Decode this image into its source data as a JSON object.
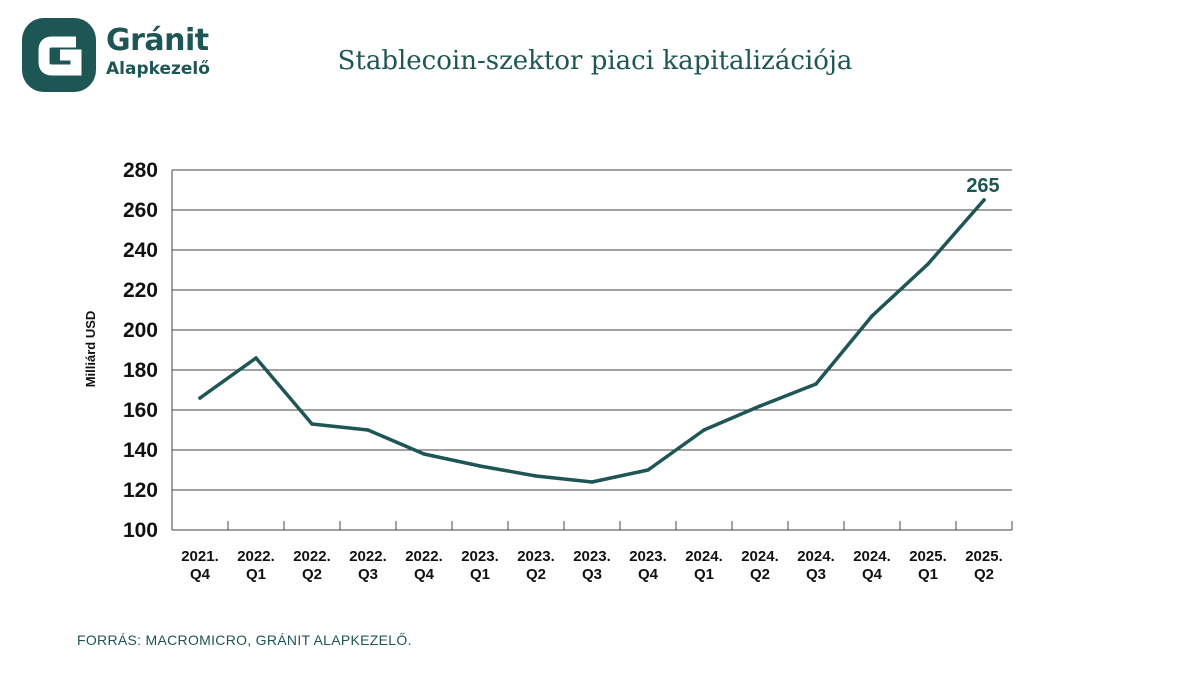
{
  "brand": {
    "name": "Gránit",
    "subtitle": "Alapkezelő",
    "logo_icon": "granit-g-logo-icon",
    "color": "#1d5655"
  },
  "source_text": "FORRÁS: MACROMICRO, GRÁNIT ALAPKEZELŐ.",
  "chart_data": {
    "type": "line",
    "title": "Stablecoin-szektor piaci kapitalizációja",
    "ylabel": "Milliárd USD",
    "xlabel": "",
    "ylim": [
      100,
      280
    ],
    "yticks": [
      100,
      120,
      140,
      160,
      180,
      200,
      220,
      240,
      260,
      280
    ],
    "grid": true,
    "categories": [
      [
        "2021.",
        "Q4"
      ],
      [
        "2022.",
        "Q1"
      ],
      [
        "2022.",
        "Q2"
      ],
      [
        "2022.",
        "Q3"
      ],
      [
        "2022.",
        "Q4"
      ],
      [
        "2023.",
        "Q1"
      ],
      [
        "2023.",
        "Q2"
      ],
      [
        "2023.",
        "Q3"
      ],
      [
        "2023.",
        "Q4"
      ],
      [
        "2024.",
        "Q1"
      ],
      [
        "2024.",
        "Q2"
      ],
      [
        "2024.",
        "Q3"
      ],
      [
        "2024.",
        "Q4"
      ],
      [
        "2025.",
        "Q1"
      ],
      [
        "2025.",
        "Q2"
      ]
    ],
    "series": [
      {
        "values": [
          166,
          186,
          153,
          150,
          138,
          132,
          127,
          124,
          130,
          150,
          162,
          173,
          207,
          233,
          265
        ],
        "color": "#1d5655"
      }
    ],
    "annotations": [
      {
        "index": 14,
        "text": "265"
      }
    ]
  }
}
